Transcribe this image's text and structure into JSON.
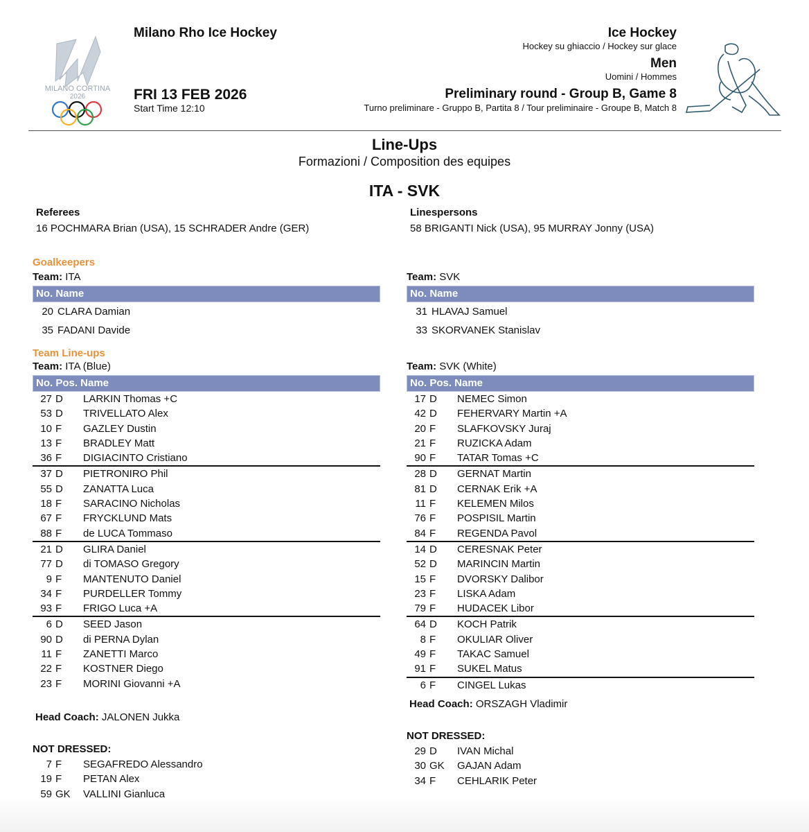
{
  "header": {
    "venue": "Milano Rho Ice Hockey",
    "date": "FRI 13 FEB 2026",
    "start_time": "Start Time 12:10",
    "logo_text": "MILANO CORTINA 2026",
    "sport": "Ice Hockey",
    "sport_sub": "Hockey su ghiaccio / Hockey sur glace",
    "gender": "Men",
    "gender_sub": "Uomini / Hommes",
    "round": "Preliminary round - Group B, Game 8",
    "round_sub": "Turno preliminare - Gruppo B, Partita 8 / Tour preliminaire - Groupe B, Match 8"
  },
  "title": "Line-Ups",
  "subtitle": "Formazioni / Composition des equipes",
  "matchup": "ITA - SVK",
  "officials": {
    "referees_label": "Referees",
    "referees": "16 POCHMARA Brian (USA), 15 SCHRADER Andre (GER)",
    "linespersons_label": "Linespersons",
    "linespersons": "58 BRIGANTI Nick (USA), 95 MURRAY Jonny (USA)"
  },
  "labels": {
    "goalkeepers": "Goalkeepers",
    "team_lineups": "Team Line-ups",
    "team": "Team:",
    "gk_header": "No. Name",
    "lineup_header": "No. Pos. Name",
    "head_coach": "Head Coach:",
    "not_dressed": "NOT DRESSED:"
  },
  "colors": {
    "accent": "#e8913a",
    "table_header": "#7d8bbd"
  },
  "teams": [
    {
      "gk_team": "ITA",
      "goalkeepers": [
        {
          "no": "20",
          "name": "CLARA Damian"
        },
        {
          "no": "35",
          "name": "FADANI Davide"
        }
      ],
      "lineup_team": "ITA (Blue)",
      "groups": [
        [
          {
            "no": "27",
            "pos": "D",
            "name": "LARKIN Thomas  +C"
          },
          {
            "no": "53",
            "pos": "D",
            "name": "TRIVELLATO Alex"
          },
          {
            "no": "10",
            "pos": "F",
            "name": "GAZLEY Dustin"
          },
          {
            "no": "13",
            "pos": "F",
            "name": "BRADLEY Matt"
          },
          {
            "no": "36",
            "pos": "F",
            "name": "DIGIACINTO Cristiano"
          }
        ],
        [
          {
            "no": "37",
            "pos": "D",
            "name": "PIETRONIRO Phil"
          },
          {
            "no": "55",
            "pos": "D",
            "name": "ZANATTA Luca"
          },
          {
            "no": "18",
            "pos": "F",
            "name": "SARACINO Nicholas"
          },
          {
            "no": "67",
            "pos": "F",
            "name": "FRYCKLUND Mats"
          },
          {
            "no": "88",
            "pos": "F",
            "name": "de LUCA Tommaso"
          }
        ],
        [
          {
            "no": "21",
            "pos": "D",
            "name": "GLIRA Daniel"
          },
          {
            "no": "77",
            "pos": "D",
            "name": "di TOMASO Gregory"
          },
          {
            "no": "9",
            "pos": "F",
            "name": "MANTENUTO Daniel"
          },
          {
            "no": "34",
            "pos": "F",
            "name": "PURDELLER Tommy"
          },
          {
            "no": "93",
            "pos": "F",
            "name": "FRIGO Luca  +A"
          }
        ],
        [
          {
            "no": "6",
            "pos": "D",
            "name": "SEED Jason"
          },
          {
            "no": "90",
            "pos": "D",
            "name": "di PERNA Dylan"
          },
          {
            "no": "11",
            "pos": "F",
            "name": "ZANETTI Marco"
          },
          {
            "no": "22",
            "pos": "F",
            "name": "KOSTNER Diego"
          },
          {
            "no": "23",
            "pos": "F",
            "name": "MORINI Giovanni  +A"
          }
        ]
      ],
      "head_coach": "JALONEN Jukka",
      "not_dressed": [
        {
          "no": "7",
          "pos": "F",
          "name": "SEGAFREDO Alessandro"
        },
        {
          "no": "19",
          "pos": "F",
          "name": "PETAN Alex"
        },
        {
          "no": "59",
          "pos": "GK",
          "name": "VALLINI Gianluca"
        }
      ]
    },
    {
      "gk_team": "SVK",
      "goalkeepers": [
        {
          "no": "31",
          "name": "HLAVAJ Samuel"
        },
        {
          "no": "33",
          "name": "SKORVANEK Stanislav"
        }
      ],
      "lineup_team": "SVK (White)",
      "groups": [
        [
          {
            "no": "17",
            "pos": "D",
            "name": "NEMEC Simon"
          },
          {
            "no": "42",
            "pos": "D",
            "name": "FEHERVARY Martin  +A"
          },
          {
            "no": "20",
            "pos": "F",
            "name": "SLAFKOVSKY Juraj"
          },
          {
            "no": "21",
            "pos": "F",
            "name": "RUZICKA Adam"
          },
          {
            "no": "90",
            "pos": "F",
            "name": "TATAR Tomas  +C"
          }
        ],
        [
          {
            "no": "28",
            "pos": "D",
            "name": "GERNAT Martin"
          },
          {
            "no": "81",
            "pos": "D",
            "name": "CERNAK Erik  +A"
          },
          {
            "no": "11",
            "pos": "F",
            "name": "KELEMEN Milos"
          },
          {
            "no": "76",
            "pos": "F",
            "name": "POSPISIL Martin"
          },
          {
            "no": "84",
            "pos": "F",
            "name": "REGENDA Pavol"
          }
        ],
        [
          {
            "no": "14",
            "pos": "D",
            "name": "CERESNAK Peter"
          },
          {
            "no": "52",
            "pos": "D",
            "name": "MARINCIN Martin"
          },
          {
            "no": "15",
            "pos": "F",
            "name": "DVORSKY Dalibor"
          },
          {
            "no": "23",
            "pos": "F",
            "name": "LISKA Adam"
          },
          {
            "no": "79",
            "pos": "F",
            "name": "HUDACEK Libor"
          }
        ],
        [
          {
            "no": "64",
            "pos": "D",
            "name": "KOCH Patrik"
          },
          {
            "no": "8",
            "pos": "F",
            "name": "OKULIAR Oliver"
          },
          {
            "no": "49",
            "pos": "F",
            "name": "TAKAC Samuel"
          },
          {
            "no": "91",
            "pos": "F",
            "name": "SUKEL Matus"
          }
        ],
        [
          {
            "no": "6",
            "pos": "F",
            "name": "CINGEL Lukas"
          }
        ]
      ],
      "head_coach": "ORSZAGH Vladimir",
      "not_dressed": [
        {
          "no": "29",
          "pos": "D",
          "name": "IVAN Michal"
        },
        {
          "no": "30",
          "pos": "GK",
          "name": "GAJAN Adam"
        },
        {
          "no": "34",
          "pos": "F",
          "name": "CEHLARIK Peter"
        }
      ]
    }
  ]
}
